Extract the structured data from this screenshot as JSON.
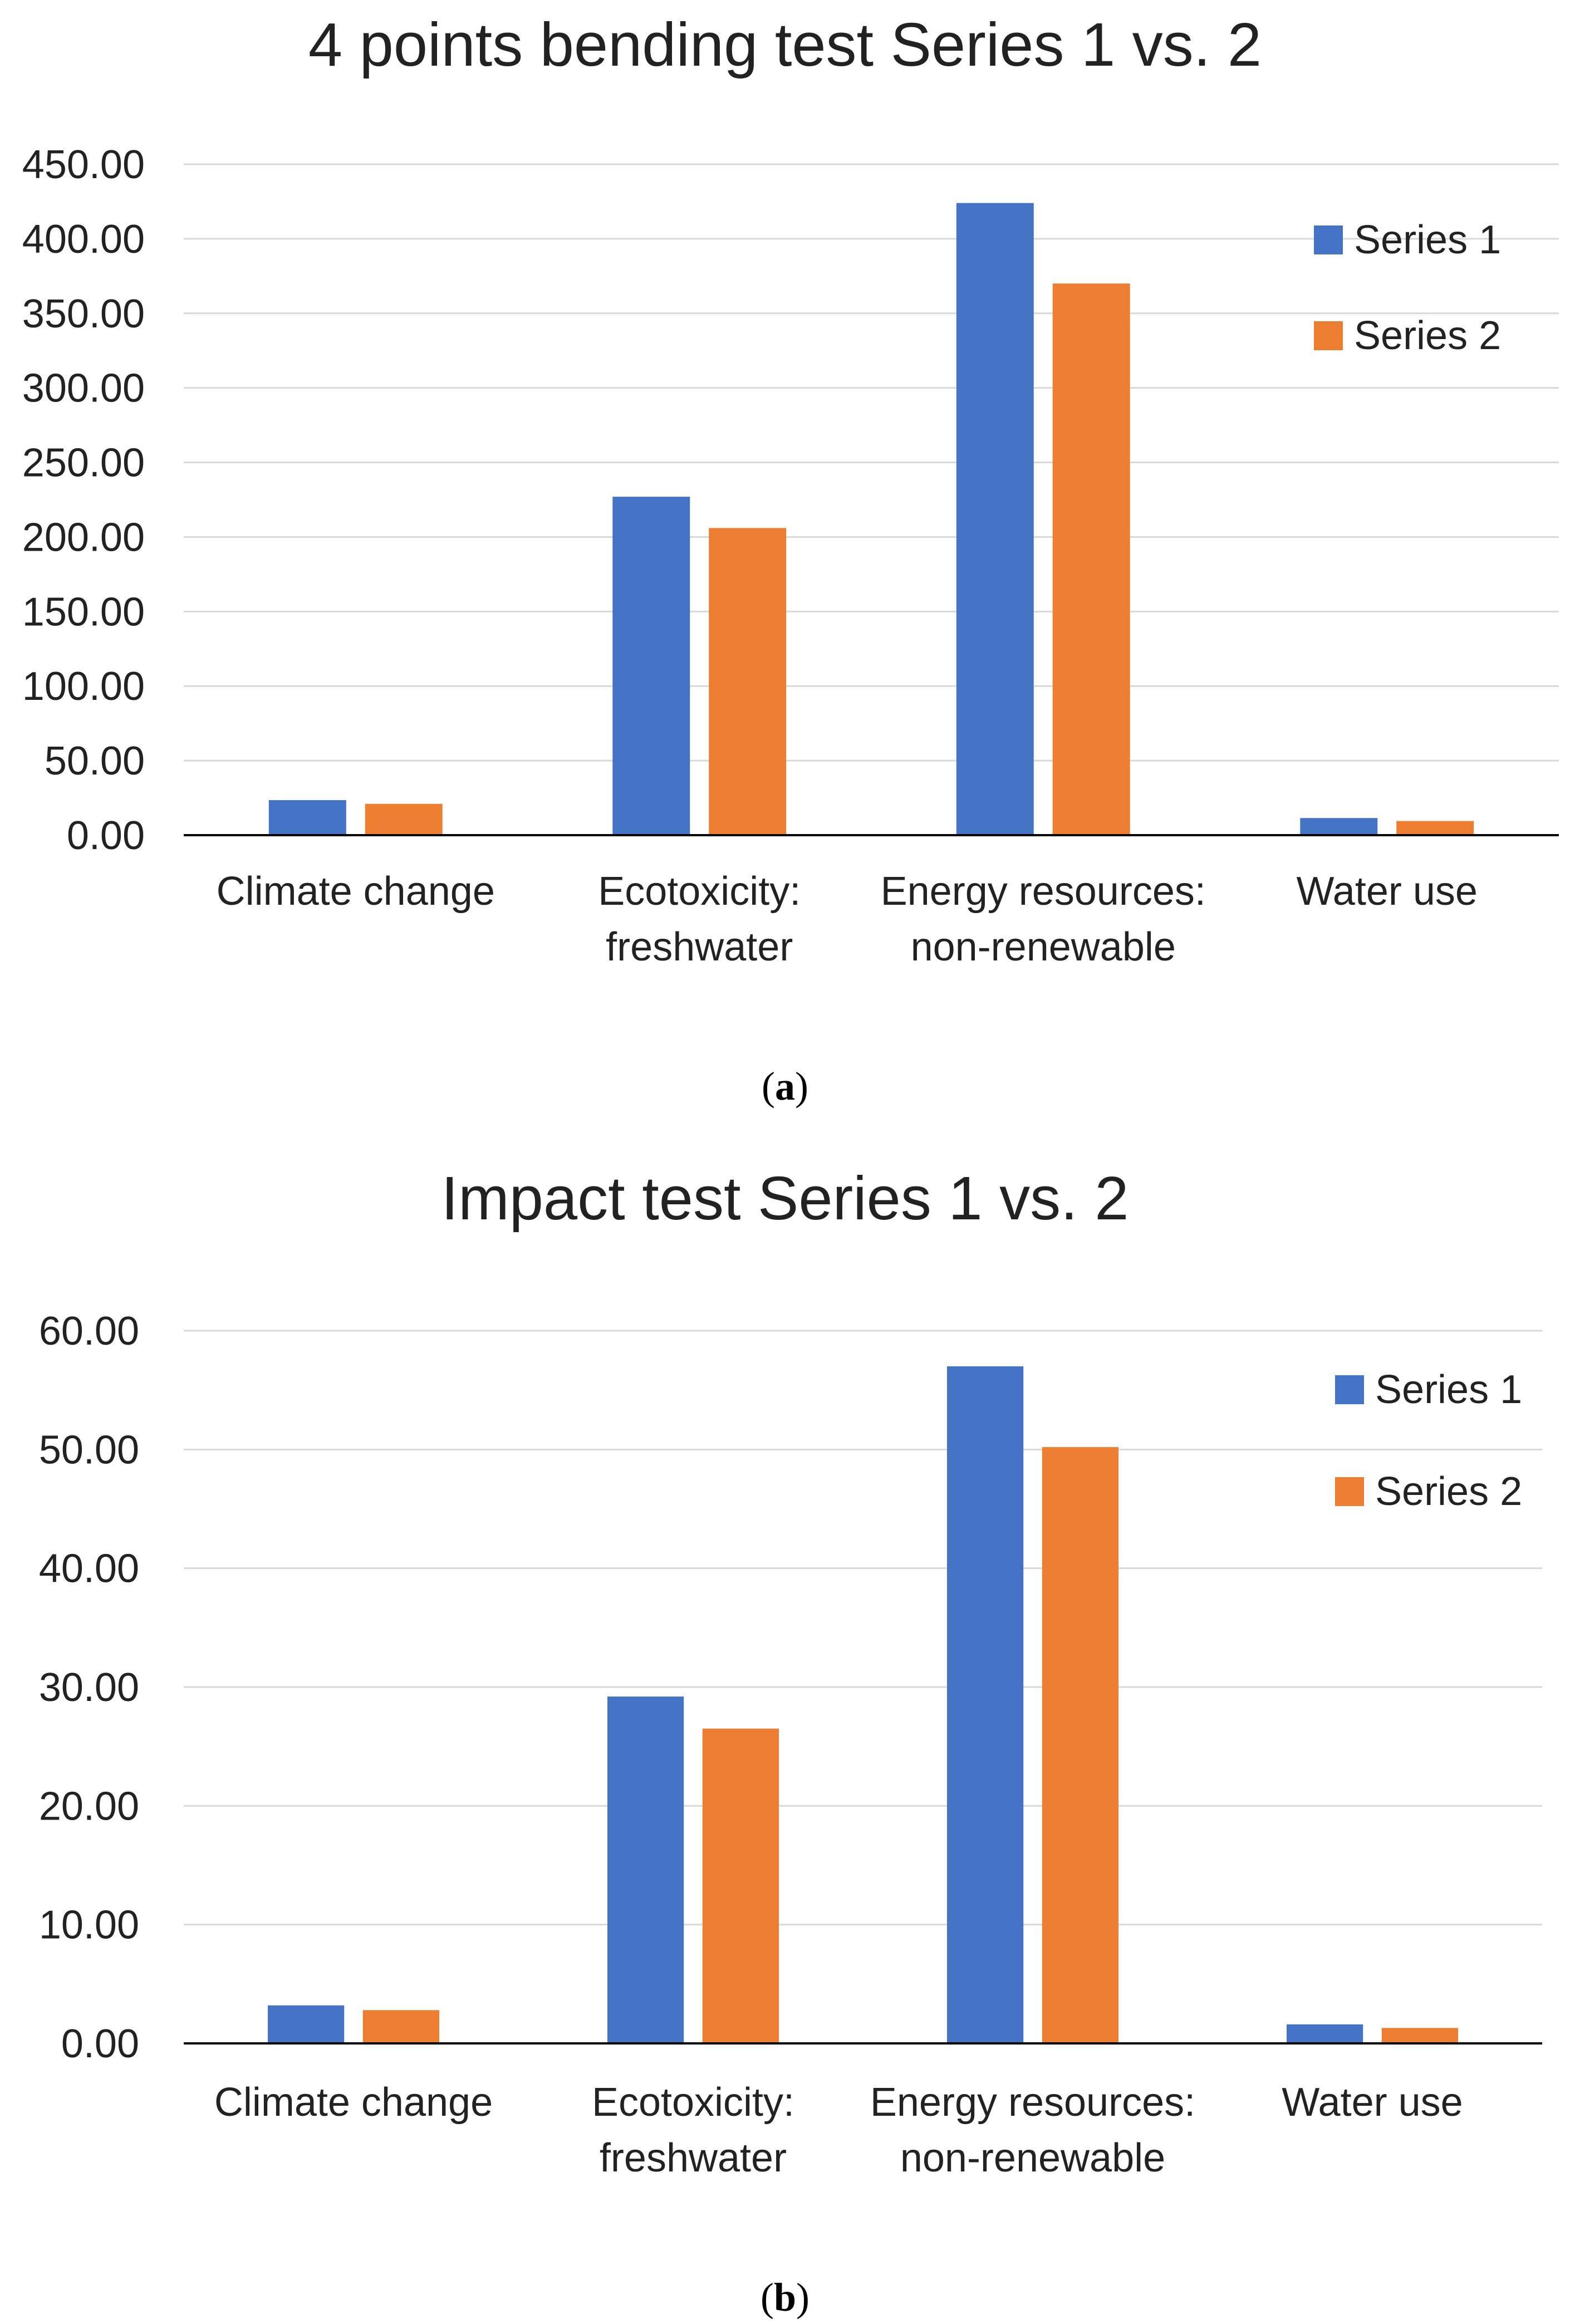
{
  "colors": {
    "series1": "#4472C4",
    "series2": "#ED7D31",
    "grid": "#D9D9D9",
    "axis": "#000000"
  },
  "chart_data": [
    {
      "type": "bar",
      "title": "4 points bending test Series 1 vs.  2",
      "caption_letter": "a",
      "categories": [
        [
          "Climate change"
        ],
        [
          "Ecotoxicity:",
          "freshwater"
        ],
        [
          "Energy resources:",
          "non-renewable"
        ],
        [
          "Water use"
        ]
      ],
      "series": [
        {
          "name": "Series 1",
          "values": [
            23.5,
            227,
            424,
            11.5
          ]
        },
        {
          "name": "Series 2",
          "values": [
            21,
            206,
            370,
            9.5
          ]
        }
      ],
      "yticks": [
        "0.00",
        "50.00",
        "100.00",
        "150.00",
        "200.00",
        "250.00",
        "300.00",
        "350.00",
        "400.00",
        "450.00"
      ],
      "ylim": [
        0,
        450
      ],
      "xlabel": "",
      "ylabel": "",
      "legend": "top-right"
    },
    {
      "type": "bar",
      "title": "Impact test Series 1 vs. 2",
      "caption_letter": "b",
      "categories": [
        [
          "Climate change"
        ],
        [
          "Ecotoxicity:",
          "freshwater"
        ],
        [
          "Energy resources:",
          "non-renewable"
        ],
        [
          "Water use"
        ]
      ],
      "series": [
        {
          "name": "Series 1",
          "values": [
            3.2,
            29.2,
            57,
            1.6
          ]
        },
        {
          "name": "Series 2",
          "values": [
            2.8,
            26.5,
            50.2,
            1.3
          ]
        }
      ],
      "yticks": [
        "0.00",
        "10.00",
        "20.00",
        "30.00",
        "40.00",
        "50.00",
        "60.00"
      ],
      "ylim": [
        0,
        60
      ],
      "xlabel": "",
      "ylabel": "",
      "legend": "top-right"
    }
  ]
}
